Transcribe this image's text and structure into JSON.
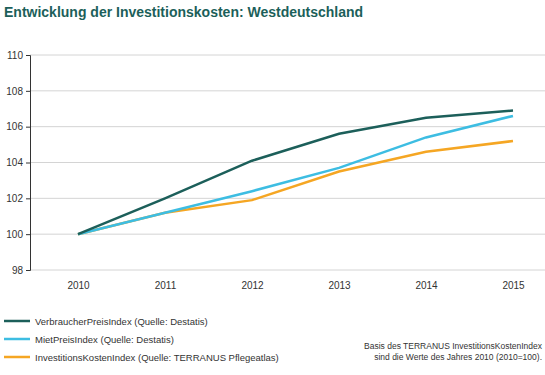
{
  "chart_data": {
    "type": "line",
    "title": "Entwicklung der Investitionskosten: Westdeutschland",
    "categories": [
      "2010",
      "2011",
      "2012",
      "2013",
      "2014",
      "2015"
    ],
    "series": [
      {
        "name": "VerbraucherPreisIndex (Quelle: Destatis)",
        "color": "#1c5f5a",
        "values": [
          100,
          102.0,
          104.1,
          105.6,
          106.5,
          106.9
        ]
      },
      {
        "name": "MietPreisIndex (Quelle: Destatis)",
        "color": "#3dbde2",
        "values": [
          100,
          101.2,
          102.4,
          103.7,
          105.4,
          106.6
        ]
      },
      {
        "name": "InvestitionsKostenIndex (Quelle: TERRANUS Pflegeatlas)",
        "color": "#f5a623",
        "values": [
          100,
          101.2,
          101.9,
          103.5,
          104.6,
          105.2
        ]
      }
    ],
    "ylim": [
      98,
      110
    ],
    "yticks": [
      98,
      100,
      102,
      104,
      106,
      108,
      110
    ],
    "grid": true,
    "legend": "bottom-left",
    "annotations": [
      "Basis des TERRANUS InvestitionsKostenIndex",
      "sind die Werte des Jahres 2010 (2010=100)."
    ]
  }
}
